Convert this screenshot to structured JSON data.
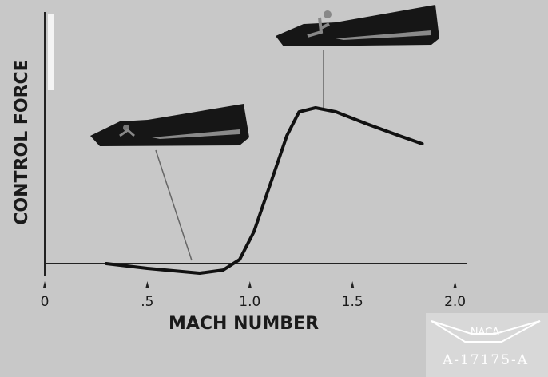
{
  "chart_data": {
    "type": "line",
    "x_label": "MACH NUMBER",
    "y_label": "CONTROL FORCE",
    "x": [
      0.3,
      0.5,
      0.755,
      0.87,
      0.95,
      1.02,
      1.1,
      1.18,
      1.24,
      1.32,
      1.42,
      1.57,
      1.73,
      1.84
    ],
    "values": [
      0,
      -0.2,
      -0.4,
      -0.27,
      0.17,
      1.33,
      3.33,
      5.33,
      6.33,
      6.5,
      6.33,
      5.83,
      5.33,
      5.0
    ],
    "color": "#111111",
    "xlim": [
      0,
      2.06
    ],
    "ylim": [
      -0.5,
      10.5
    ],
    "xticks": [
      0,
      {
        "value": 0.5,
        "label": ".5"
      },
      {
        "value": 1,
        "label": "1.0"
      },
      1.5,
      {
        "value": 2,
        "label": "2.0"
      }
    ],
    "grid": false,
    "annotations": [
      "NACA",
      "A-17175-A"
    ]
  }
}
